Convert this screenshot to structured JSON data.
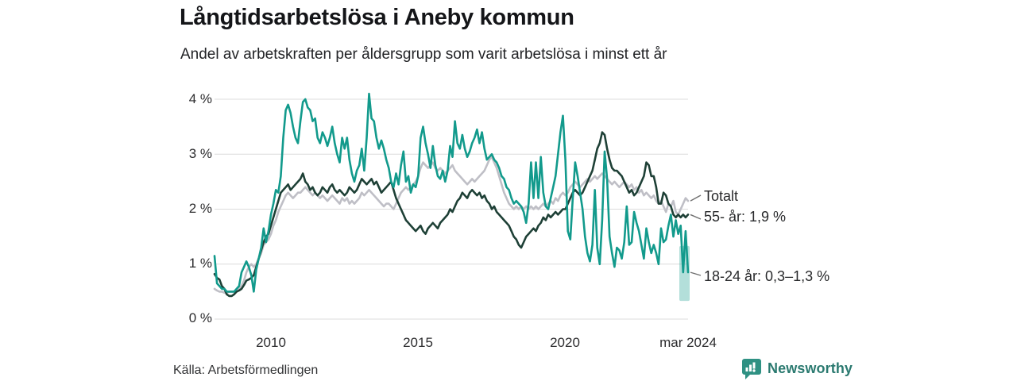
{
  "header": {
    "title": "Långtidsarbetslösa i Aneby kommun",
    "subtitle": "Andel av arbetskraften per åldersgrupp som varit arbetslösa i minst ett år"
  },
  "footer": {
    "source": "Källa: Arbetsförmedlingen",
    "brand_name": "Newsworthy",
    "brand_icon": "speech-bubble-bar-chart-icon",
    "brand_color": "#2b7a70",
    "brand_icon_color": "#2f9183"
  },
  "chart_data": {
    "type": "line",
    "title": "Långtidsarbetslösa i Aneby kommun",
    "subtitle": "Andel av arbetskraften per åldersgrupp som varit arbetslösa i minst ett år",
    "x_unit": "month",
    "x_start": "2008-02",
    "x_end": "2024-03",
    "ylim": [
      0,
      4
    ],
    "grid": "horizontal",
    "grid_color": "#dcdcdc",
    "yticks": [
      {
        "label": "4 %",
        "value": 4
      },
      {
        "label": "3 %",
        "value": 3
      },
      {
        "label": "2 %",
        "value": 2
      },
      {
        "label": "1 %",
        "value": 1
      },
      {
        "label": "0 %",
        "value": 0
      }
    ],
    "xticks": [
      {
        "label": "2010",
        "month_index": 23
      },
      {
        "label": "2015",
        "month_index": 83
      },
      {
        "label": "2020",
        "month_index": 143
      },
      {
        "label": "mar 2024",
        "month_index": 193
      }
    ],
    "series": [
      {
        "name": "Totalt",
        "label": "Totalt",
        "color": "#bfbfc6",
        "values": [
          0.55,
          0.52,
          0.5,
          0.5,
          0.48,
          0.48,
          0.5,
          0.5,
          0.5,
          0.52,
          0.55,
          0.6,
          0.7,
          0.85,
          0.95,
          1.0,
          0.95,
          1.0,
          1.1,
          1.2,
          1.35,
          1.4,
          1.45,
          1.55,
          1.7,
          1.8,
          1.95,
          2.05,
          2.15,
          2.25,
          2.3,
          2.25,
          2.2,
          2.25,
          2.3,
          2.3,
          2.35,
          2.4,
          2.35,
          2.3,
          2.25,
          2.3,
          2.25,
          2.2,
          2.25,
          2.2,
          2.15,
          2.2,
          2.25,
          2.2,
          2.15,
          2.1,
          2.2,
          2.15,
          2.2,
          2.1,
          2.15,
          2.1,
          2.15,
          2.2,
          2.3,
          2.25,
          2.3,
          2.35,
          2.3,
          2.25,
          2.2,
          2.15,
          2.1,
          2.05,
          2.1,
          2.1,
          2.05,
          2.0,
          2.1,
          2.2,
          2.3,
          2.35,
          2.4,
          2.35,
          2.4,
          2.45,
          2.5,
          2.6,
          2.75,
          2.85,
          2.8,
          2.75,
          2.8,
          2.85,
          2.75,
          2.7,
          2.75,
          2.7,
          2.65,
          2.7,
          2.75,
          2.8,
          2.7,
          2.65,
          2.6,
          2.55,
          2.5,
          2.45,
          2.5,
          2.55,
          2.5,
          2.55,
          2.6,
          2.65,
          2.7,
          2.8,
          2.9,
          2.95,
          2.85,
          2.75,
          2.6,
          2.45,
          2.3,
          2.2,
          2.1,
          2.05,
          2.0,
          2.05,
          2.0,
          2.05,
          2.0,
          2.05,
          2.0,
          2.05,
          2.0,
          2.05,
          2.0,
          2.05,
          2.1,
          2.05,
          2.1,
          2.15,
          2.1,
          2.2,
          2.15,
          2.25,
          2.3,
          2.25,
          2.3,
          2.4,
          2.45,
          2.5,
          2.45,
          2.4,
          2.45,
          2.5,
          2.55,
          2.5,
          2.55,
          2.6,
          2.55,
          2.6,
          2.65,
          2.6,
          2.55,
          2.5,
          2.45,
          2.5,
          2.45,
          2.4,
          2.45,
          2.5,
          2.45,
          2.4,
          2.45,
          2.35,
          2.4,
          2.3,
          2.35,
          2.25,
          2.3,
          2.25,
          2.2,
          2.25,
          2.15,
          2.1,
          2.15,
          2.05,
          1.95,
          2.1,
          2.05,
          2.15,
          1.95,
          1.9,
          2.0,
          2.1,
          2.2,
          2.15
        ]
      },
      {
        "name": "55- år",
        "label": "55- år: 1,9 %",
        "last_value": 1.9,
        "color": "#1e4036",
        "values": [
          0.82,
          0.75,
          0.72,
          0.6,
          0.55,
          0.45,
          0.42,
          0.42,
          0.45,
          0.5,
          0.52,
          0.55,
          0.62,
          0.7,
          0.72,
          0.75,
          0.8,
          0.95,
          1.1,
          1.25,
          1.4,
          1.5,
          1.55,
          1.7,
          1.85,
          2.0,
          2.15,
          2.3,
          2.35,
          2.4,
          2.45,
          2.35,
          2.4,
          2.45,
          2.5,
          2.55,
          2.65,
          2.5,
          2.45,
          2.35,
          2.4,
          2.3,
          2.25,
          2.3,
          2.4,
          2.35,
          2.3,
          2.4,
          2.45,
          2.35,
          2.3,
          2.35,
          2.3,
          2.25,
          2.3,
          2.4,
          2.35,
          2.3,
          2.35,
          2.45,
          2.55,
          2.5,
          2.45,
          2.5,
          2.55,
          2.45,
          2.5,
          2.4,
          2.3,
          2.35,
          2.4,
          2.45,
          2.5,
          2.35,
          2.2,
          2.1,
          2.0,
          1.9,
          1.8,
          1.75,
          1.7,
          1.65,
          1.6,
          1.65,
          1.7,
          1.6,
          1.55,
          1.65,
          1.7,
          1.75,
          1.7,
          1.65,
          1.75,
          1.8,
          1.85,
          1.9,
          2.0,
          1.95,
          2.05,
          2.15,
          2.2,
          2.3,
          2.25,
          2.2,
          2.3,
          2.35,
          2.3,
          2.25,
          2.3,
          2.2,
          2.25,
          2.15,
          2.1,
          2.0,
          2.05,
          1.95,
          1.9,
          1.85,
          1.8,
          1.75,
          1.7,
          1.6,
          1.5,
          1.45,
          1.35,
          1.3,
          1.4,
          1.5,
          1.55,
          1.6,
          1.65,
          1.6,
          1.7,
          1.75,
          1.85,
          1.8,
          1.9,
          1.85,
          1.9,
          1.95,
          1.9,
          1.95,
          2.0,
          2.0,
          2.1,
          2.2,
          2.3,
          2.35,
          2.3,
          2.25,
          2.3,
          2.4,
          2.5,
          2.6,
          2.7,
          2.9,
          3.1,
          3.2,
          3.4,
          3.35,
          3.1,
          2.9,
          2.75,
          2.7,
          2.7,
          2.65,
          2.6,
          2.5,
          2.4,
          2.3,
          2.35,
          2.25,
          2.3,
          2.4,
          2.5,
          2.6,
          2.85,
          2.8,
          2.6,
          2.6,
          2.4,
          2.1,
          2.1,
          2.3,
          2.25,
          2.1,
          2.05,
          1.9,
          1.85,
          1.9,
          1.85,
          1.9,
          1.85,
          1.9
        ]
      },
      {
        "name": "18-24 år",
        "label": "18-24 år: 0,3–1,3 %",
        "last_value_interval": {
          "low": 0.3,
          "high": 1.3
        },
        "color": "#129a8c",
        "uncertainty_last": {
          "low": 0.33,
          "high": 1.33,
          "opacity": 0.32
        },
        "values": [
          1.15,
          0.65,
          0.6,
          0.55,
          0.55,
          0.5,
          0.5,
          0.5,
          0.5,
          0.55,
          0.6,
          0.85,
          0.95,
          1.05,
          0.95,
          0.8,
          0.5,
          0.9,
          1.1,
          1.3,
          1.65,
          1.4,
          1.6,
          1.9,
          2.1,
          2.35,
          2.3,
          2.6,
          3.3,
          3.8,
          3.9,
          3.75,
          3.5,
          3.3,
          3.2,
          3.6,
          3.95,
          4.0,
          3.85,
          3.8,
          3.6,
          3.65,
          3.3,
          3.2,
          3.4,
          3.3,
          3.15,
          3.3,
          3.5,
          3.2,
          3.0,
          2.85,
          3.3,
          3.1,
          3.3,
          2.9,
          2.65,
          2.5,
          2.7,
          2.8,
          3.1,
          2.7,
          3.3,
          4.1,
          3.65,
          3.6,
          3.3,
          3.1,
          3.25,
          3.1,
          2.9,
          2.75,
          2.5,
          2.4,
          2.65,
          2.45,
          2.8,
          3.05,
          2.5,
          2.6,
          2.3,
          2.45,
          2.4,
          2.6,
          3.3,
          3.5,
          3.2,
          3.0,
          2.75,
          3.15,
          2.8,
          2.6,
          2.55,
          2.7,
          2.5,
          2.7,
          3.15,
          2.95,
          3.6,
          3.2,
          3.1,
          3.35,
          3.1,
          2.95,
          3.05,
          3.2,
          3.3,
          3.45,
          3.2,
          3.4,
          3.1,
          2.9,
          2.95,
          3.0,
          2.9,
          2.85,
          2.75,
          2.6,
          2.55,
          2.4,
          2.35,
          2.2,
          2.1,
          2.15,
          2.1,
          2.05,
          1.95,
          1.75,
          2.1,
          2.85,
          2.2,
          2.85,
          2.2,
          2.95,
          2.3,
          2.05,
          2.0,
          2.2,
          2.4,
          2.6,
          3.0,
          3.4,
          3.7,
          2.9,
          1.6,
          1.45,
          2.2,
          2.85,
          2.6,
          2.3,
          2.0,
          1.5,
          1.2,
          1.05,
          1.35,
          2.35,
          1.3,
          1.0,
          1.8,
          3.05,
          2.55,
          1.5,
          1.2,
          0.95,
          1.3,
          1.25,
          1.1,
          1.4,
          2.05,
          1.35,
          1.4,
          1.95,
          1.75,
          1.6,
          1.35,
          1.1,
          1.65,
          1.4,
          1.2,
          1.35,
          1.2,
          1.0,
          1.65,
          1.4,
          1.45,
          1.7,
          1.9,
          1.5,
          1.8,
          1.55,
          1.7,
          0.85,
          1.6,
          0.85
        ]
      }
    ],
    "annotations": [
      "Totalt",
      "55- år: 1,9 %",
      "18-24 år: 0,3–1,3 %"
    ],
    "legend_position": "right-end-labels",
    "source": "Källa: Arbetsförmedlingen"
  }
}
